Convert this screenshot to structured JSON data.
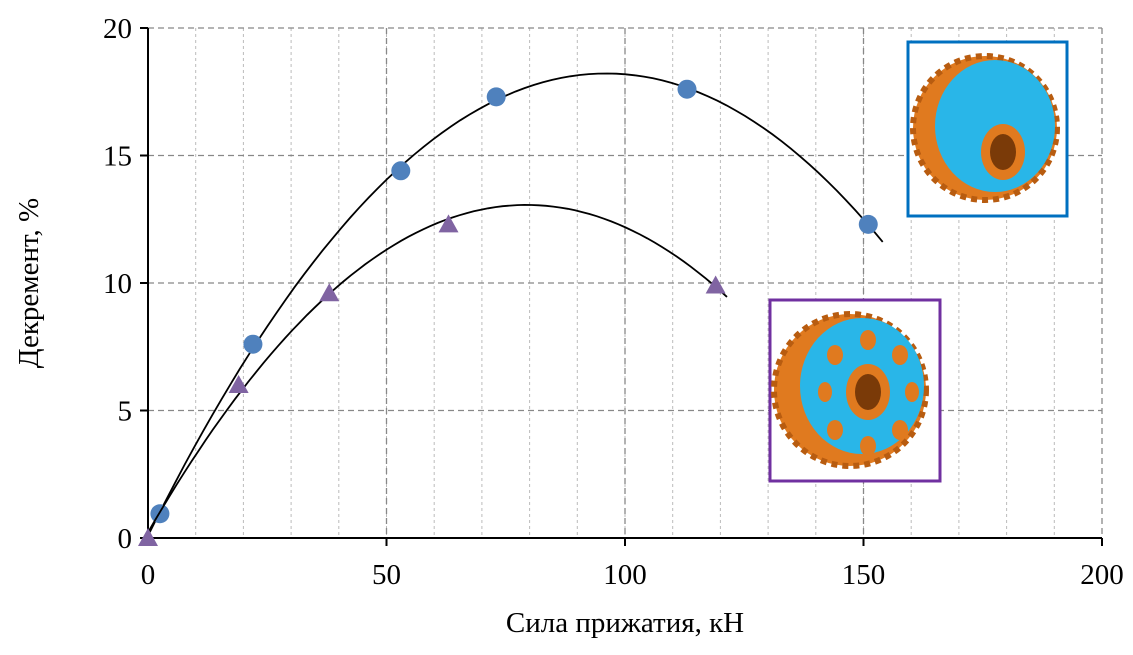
{
  "chart_data": {
    "type": "scatter",
    "x_label": "Сила прижатия, кН",
    "y_label": "Декремент, %",
    "xlim": [
      0,
      200
    ],
    "xticks": [
      0,
      50,
      100,
      150,
      200
    ],
    "ylim": [
      0,
      20
    ],
    "yticks": [
      0,
      5,
      10,
      15,
      20
    ],
    "grid": true,
    "minor_grid": true,
    "trendline": "poly2",
    "series": [
      {
        "color": "#4f81bd",
        "marker": "circle",
        "x": [
          2.5,
          22,
          53,
          73,
          113,
          151
        ],
        "values": [
          0.95,
          7.6,
          14.4,
          17.3,
          17.6,
          12.3
        ]
      },
      {
        "color": "#8064a2",
        "marker": "triangle",
        "x": [
          0,
          19,
          38,
          63,
          119
        ],
        "values": [
          0,
          6,
          9.6,
          12.3,
          9.9
        ]
      }
    ]
  }
}
